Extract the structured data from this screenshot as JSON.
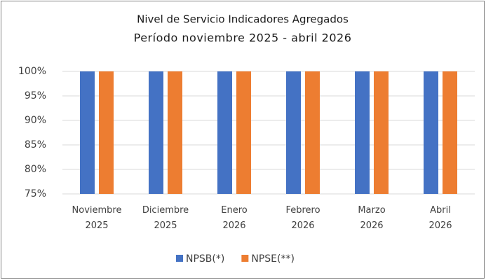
{
  "chart_data": {
    "type": "bar",
    "title": "Nivel de Servicio Indicadores Agregados",
    "subtitle": "Período noviembre 2025 - abril 2026",
    "categories": [
      "Noviembre 2025",
      "Diciembre 2025",
      "Enero 2026",
      "Febrero 2026",
      "Marzo 2026",
      "Abril 2026"
    ],
    "series": [
      {
        "name": "NPSB(*)",
        "color": "#4472c4",
        "values": [
          100,
          100,
          100,
          100,
          100,
          100
        ]
      },
      {
        "name": "NPSE(**)",
        "color": "#ed7d31",
        "values": [
          100,
          100,
          100,
          100,
          100,
          100
        ]
      }
    ],
    "ylim": [
      75,
      100
    ],
    "yticks": [
      {
        "value": 75,
        "label": "75%"
      },
      {
        "value": 80,
        "label": "80%"
      },
      {
        "value": 85,
        "label": "85%"
      },
      {
        "value": 90,
        "label": "90%"
      },
      {
        "value": 95,
        "label": "95%"
      },
      {
        "value": 100,
        "label": "100%"
      }
    ],
    "grid": true,
    "legend": "bottom"
  }
}
